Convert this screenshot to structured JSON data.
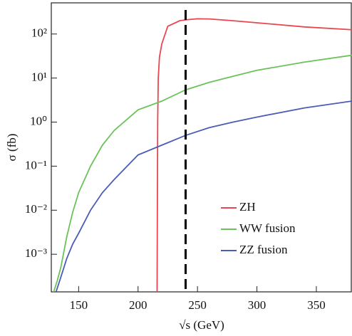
{
  "chart_data": {
    "type": "line",
    "xlabel": "√s (GeV)",
    "ylabel": "σ (fb)",
    "xlim": [
      127,
      380
    ],
    "xticks": [
      150,
      200,
      250,
      300,
      350
    ],
    "ylim": [
      0.00014,
      510
    ],
    "yscale": "log",
    "yticks": [
      {
        "value": 0.001,
        "label": "10⁻³"
      },
      {
        "value": 0.01,
        "label": "10⁻²"
      },
      {
        "value": 0.1,
        "label": "10⁻¹"
      },
      {
        "value": 1,
        "label": "10⁰"
      },
      {
        "value": 10,
        "label": "10¹"
      },
      {
        "value": 100,
        "label": "10²"
      }
    ],
    "legend": "lower right",
    "vline": {
      "x": 240,
      "color": "#000000",
      "style": "dashed"
    },
    "series": [
      {
        "name": "ZH",
        "color": "#e8474f",
        "x": [
          216,
          216.5,
          217,
          218,
          220,
          225,
          235,
          240,
          250,
          260,
          280,
          300,
          340,
          380
        ],
        "values": [
          0.00014,
          1,
          10,
          30,
          60,
          150,
          200,
          210,
          222,
          220,
          200,
          180,
          145,
          125
        ]
      },
      {
        "name": "WW fusion",
        "color": "#6cc25a",
        "x": [
          129,
          132,
          135,
          140,
          145,
          150,
          160,
          170,
          180,
          200,
          220,
          240,
          260,
          280,
          300,
          340,
          380
        ],
        "values": [
          0.00014,
          0.00025,
          0.0005,
          0.0025,
          0.009,
          0.025,
          0.1,
          0.3,
          0.65,
          1.9,
          3,
          5.4,
          8,
          11,
          15,
          23,
          33
        ]
      },
      {
        "name": "ZZ fusion",
        "color": "#4a5cb5",
        "x": [
          131,
          135,
          140,
          145,
          150,
          160,
          170,
          180,
          200,
          220,
          240,
          260,
          280,
          300,
          340,
          380
        ],
        "values": [
          0.00014,
          0.0003,
          0.0008,
          0.0017,
          0.003,
          0.01,
          0.025,
          0.05,
          0.18,
          0.3,
          0.5,
          0.75,
          1,
          1.3,
          2.1,
          3
        ]
      }
    ]
  }
}
